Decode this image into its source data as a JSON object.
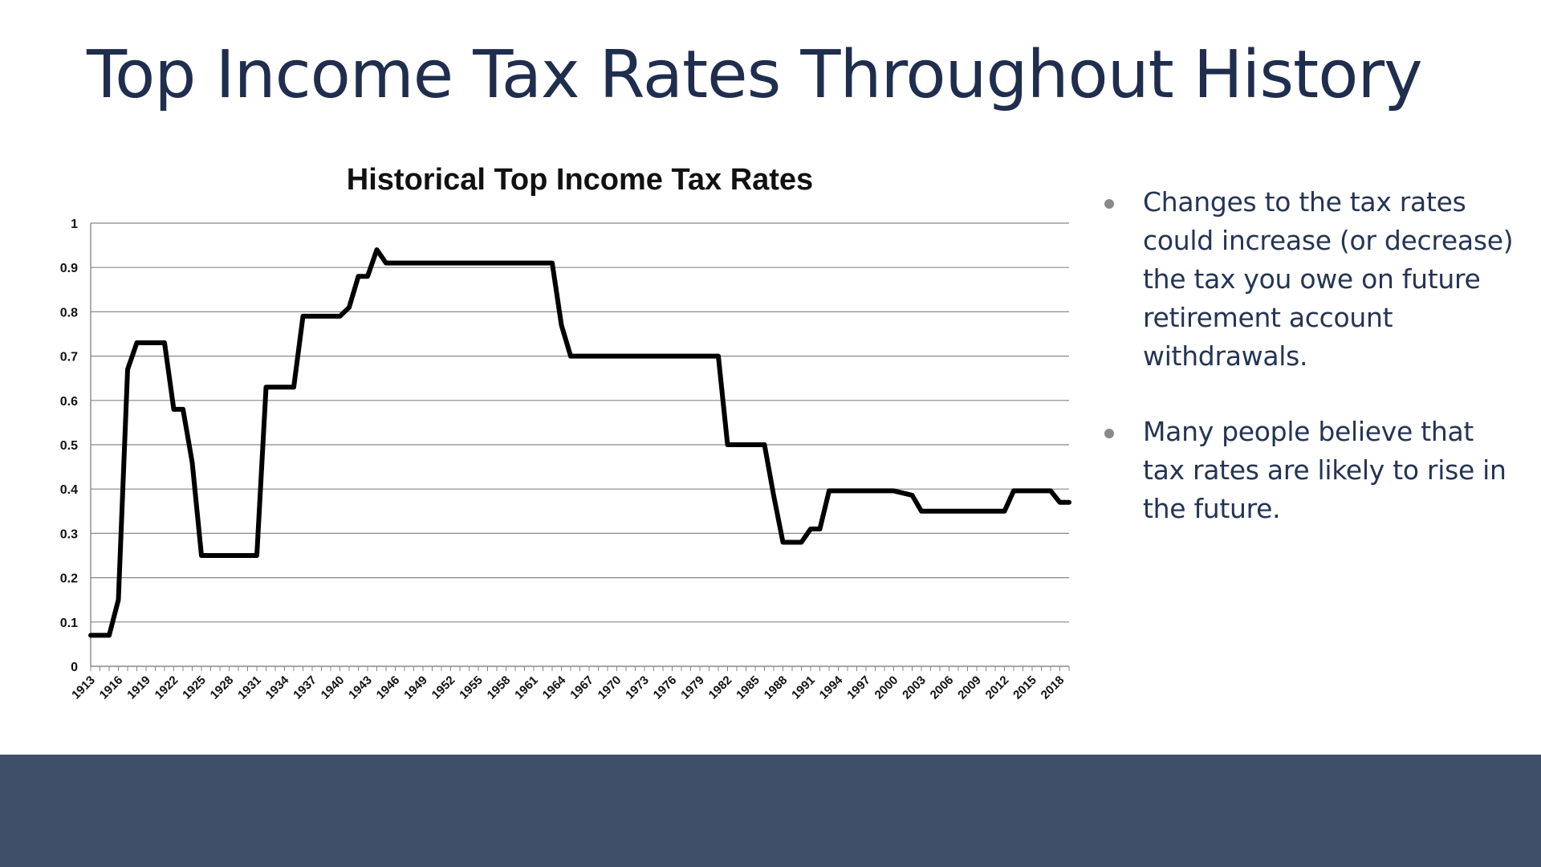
{
  "slide": {
    "title": "Top Income Tax Rates Throughout History",
    "bullets": [
      "Changes to the tax rates could increase (or decrease) the tax you owe on future retirement account withdrawals.",
      "Many people believe that tax rates are likely to rise in the future."
    ]
  },
  "colors": {
    "title": "#1f2d4e",
    "bullet_text": "#243454",
    "footer_band": "#3f4f69",
    "line": "#000000",
    "gridline": "#888888"
  },
  "chart_data": {
    "type": "line",
    "title": "Historical Top Income Tax Rates",
    "xlabel": "",
    "ylabel": "",
    "ylim": [
      0,
      1
    ],
    "yticks": [
      "0",
      "0.1",
      "0.2",
      "0.3",
      "0.4",
      "0.5",
      "0.6",
      "0.7",
      "0.8",
      "0.9",
      "1"
    ],
    "xtick_labels": [
      "1913",
      "1916",
      "1919",
      "1922",
      "1925",
      "1928",
      "1931",
      "1934",
      "1937",
      "1940",
      "1943",
      "1946",
      "1949",
      "1952",
      "1955",
      "1958",
      "1961",
      "1964",
      "1967",
      "1970",
      "1973",
      "1976",
      "1979",
      "1982",
      "1985",
      "1988",
      "1991",
      "1994",
      "1997",
      "2000",
      "2003",
      "2006",
      "2009",
      "2012",
      "2015",
      "2018"
    ],
    "grid": true,
    "legend": "none",
    "x": [
      1913,
      1914,
      1915,
      1916,
      1917,
      1918,
      1919,
      1920,
      1921,
      1922,
      1923,
      1924,
      1925,
      1926,
      1927,
      1928,
      1929,
      1930,
      1931,
      1932,
      1933,
      1934,
      1935,
      1936,
      1937,
      1938,
      1939,
      1940,
      1941,
      1942,
      1943,
      1944,
      1945,
      1946,
      1947,
      1948,
      1949,
      1950,
      1951,
      1952,
      1953,
      1954,
      1955,
      1956,
      1957,
      1958,
      1959,
      1960,
      1961,
      1962,
      1963,
      1964,
      1965,
      1966,
      1967,
      1968,
      1969,
      1970,
      1971,
      1972,
      1973,
      1974,
      1975,
      1976,
      1977,
      1978,
      1979,
      1980,
      1981,
      1982,
      1983,
      1984,
      1985,
      1986,
      1987,
      1988,
      1989,
      1990,
      1991,
      1992,
      1993,
      1994,
      1995,
      1996,
      1997,
      1998,
      1999,
      2000,
      2001,
      2002,
      2003,
      2004,
      2005,
      2006,
      2007,
      2008,
      2009,
      2010,
      2011,
      2012,
      2013,
      2014,
      2015,
      2016,
      2017,
      2018,
      2019
    ],
    "y": [
      0.07,
      0.07,
      0.07,
      0.15,
      0.67,
      0.73,
      0.73,
      0.73,
      0.73,
      0.58,
      0.58,
      0.46,
      0.25,
      0.25,
      0.25,
      0.25,
      0.25,
      0.25,
      0.25,
      0.63,
      0.63,
      0.63,
      0.63,
      0.79,
      0.79,
      0.79,
      0.79,
      0.79,
      0.81,
      0.88,
      0.88,
      0.94,
      0.91,
      0.91,
      0.91,
      0.91,
      0.91,
      0.91,
      0.91,
      0.91,
      0.91,
      0.91,
      0.91,
      0.91,
      0.91,
      0.91,
      0.91,
      0.91,
      0.91,
      0.91,
      0.91,
      0.77,
      0.7,
      0.7,
      0.7,
      0.7,
      0.7,
      0.7,
      0.7,
      0.7,
      0.7,
      0.7,
      0.7,
      0.7,
      0.7,
      0.7,
      0.7,
      0.7,
      0.7,
      0.5,
      0.5,
      0.5,
      0.5,
      0.5,
      0.385,
      0.28,
      0.28,
      0.28,
      0.31,
      0.31,
      0.396,
      0.396,
      0.396,
      0.396,
      0.396,
      0.396,
      0.396,
      0.396,
      0.391,
      0.386,
      0.35,
      0.35,
      0.35,
      0.35,
      0.35,
      0.35,
      0.35,
      0.35,
      0.35,
      0.35,
      0.396,
      0.396,
      0.396,
      0.396,
      0.396,
      0.37,
      0.37
    ]
  }
}
